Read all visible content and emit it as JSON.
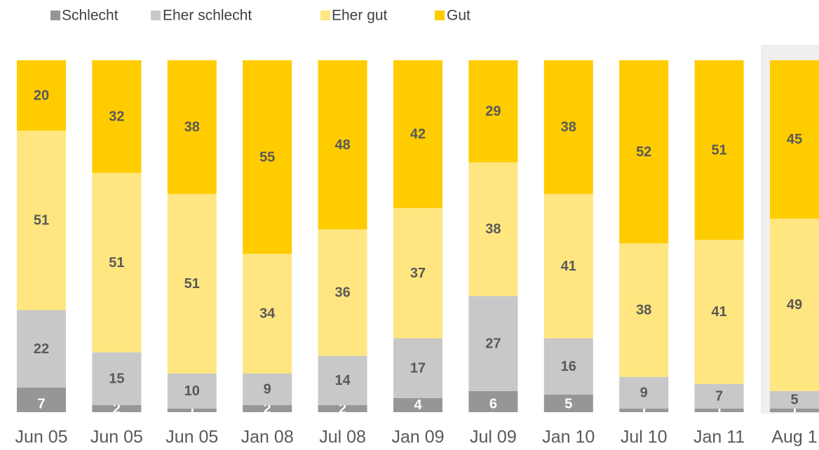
{
  "chart_data": {
    "type": "stacked_bar",
    "categories": [
      "Jun 05",
      "Jun 05",
      "Jun 05",
      "Jan 08",
      "Jul 08",
      "Jan 09",
      "Jul 09",
      "Jan 10",
      "Jul 10",
      "Jan 11",
      "Aug 1"
    ],
    "series": [
      {
        "name": "Schlecht",
        "color": "#969696",
        "values": [
          7,
          2,
          1,
          2,
          2,
          4,
          6,
          5,
          1,
          1,
          1
        ]
      },
      {
        "name": "Eher schlecht",
        "color": "#c8c8c8",
        "values": [
          22,
          15,
          10,
          9,
          14,
          17,
          27,
          16,
          9,
          7,
          5
        ]
      },
      {
        "name": "Eher gut",
        "color": "#ffe680",
        "values": [
          51,
          51,
          51,
          34,
          36,
          37,
          38,
          41,
          38,
          41,
          49
        ]
      },
      {
        "name": "Gut",
        "color": "#ffcc00",
        "values": [
          20,
          32,
          38,
          55,
          48,
          42,
          29,
          38,
          52,
          51,
          45
        ]
      }
    ],
    "ylim": [
      0,
      100
    ],
    "legend": "top"
  }
}
